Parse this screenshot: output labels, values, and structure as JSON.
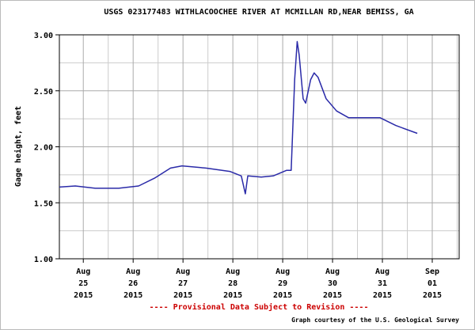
{
  "chart_data": {
    "type": "line",
    "title": "USGS 023177483 WITHLACOOCHEE RIVER AT MCMILLAN RD,NEAR BEMISS, GA",
    "y_label": "Gage height, feet",
    "notice": "---- Provisional Data Subject to Revision ----",
    "credit": "Graph courtesy of the U.S. Geological Survey",
    "xlim": [
      24.52,
      32.54
    ],
    "ylim": [
      1,
      3
    ],
    "yticks": [
      {
        "value": 1,
        "label": "1.00"
      },
      {
        "value": 1.5,
        "label": "1.50"
      },
      {
        "value": 2,
        "label": "2.00"
      },
      {
        "value": 2.5,
        "label": "2.50"
      },
      {
        "value": 3,
        "label": "3.00"
      }
    ],
    "minor_yticks": [
      1.25,
      1.75,
      2.25,
      2.75
    ],
    "xticks": [
      {
        "value": 25,
        "label": [
          "Aug",
          "25",
          "2015"
        ]
      },
      {
        "value": 26,
        "label": [
          "Aug",
          "26",
          "2015"
        ]
      },
      {
        "value": 27,
        "label": [
          "Aug",
          "27",
          "2015"
        ]
      },
      {
        "value": 28,
        "label": [
          "Aug",
          "28",
          "2015"
        ]
      },
      {
        "value": 29,
        "label": [
          "Aug",
          "29",
          "2015"
        ]
      },
      {
        "value": 30,
        "label": [
          "Aug",
          "30",
          "2015"
        ]
      },
      {
        "value": 31,
        "label": [
          "Aug",
          "31",
          "2015"
        ]
      },
      {
        "value": 32,
        "label": [
          "Sep",
          "01",
          "2015"
        ]
      }
    ],
    "minor_xticks": [
      25.5,
      26.5,
      27.5,
      28.5,
      29.5,
      30.5,
      31.5,
      32.5
    ],
    "grid": true,
    "series": [
      {
        "color": "#2a2aa8",
        "x": [
          24.52,
          24.84,
          25.24,
          25.71,
          26.11,
          26.43,
          26.75,
          26.98,
          27.46,
          27.94,
          28.17,
          28.25,
          28.3,
          28.57,
          28.81,
          29.08,
          29.17,
          29.24,
          29.29,
          29.33,
          29.41,
          29.46,
          29.56,
          29.63,
          29.71,
          29.87,
          30.08,
          30.32,
          30.95,
          31.27,
          31.7
        ],
        "values": [
          1.64,
          1.65,
          1.63,
          1.63,
          1.65,
          1.72,
          1.81,
          1.83,
          1.81,
          1.78,
          1.74,
          1.58,
          1.74,
          1.73,
          1.74,
          1.79,
          1.79,
          2.6,
          2.94,
          2.82,
          2.43,
          2.39,
          2.6,
          2.66,
          2.62,
          2.43,
          2.32,
          2.26,
          2.26,
          2.19,
          2.12
        ]
      }
    ]
  }
}
